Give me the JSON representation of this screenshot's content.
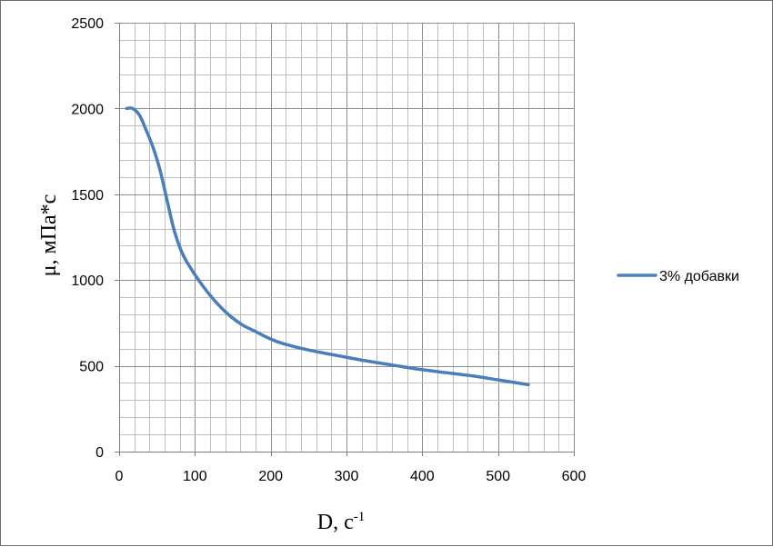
{
  "chart_data": {
    "type": "line",
    "title": "",
    "xlabel": "D, с",
    "xlabel_superscript": "-1",
    "ylabel": "μ, мПа*с",
    "xlim": [
      0,
      600
    ],
    "ylim": [
      0,
      2500
    ],
    "x_ticks": [
      0,
      100,
      200,
      300,
      400,
      500,
      600
    ],
    "y_ticks": [
      0,
      500,
      1000,
      1500,
      2000,
      2500
    ],
    "x_minor_step": 20,
    "y_minor_step": 100,
    "grid": true,
    "legend_position": "right",
    "series": [
      {
        "name": "3% добавки",
        "color": "#4a7ebb",
        "x": [
          10,
          18,
          27,
          36,
          45,
          54,
          63,
          72,
          81,
          90,
          108,
          126,
          144,
          162,
          180,
          198,
          216,
          252,
          288,
          324,
          360,
          396,
          432,
          468,
          504,
          540
        ],
        "y": [
          2000,
          2000,
          1960,
          1870,
          1770,
          1640,
          1470,
          1300,
          1180,
          1100,
          980,
          880,
          800,
          740,
          700,
          660,
          630,
          590,
          560,
          530,
          505,
          480,
          460,
          440,
          415,
          390
        ]
      }
    ]
  }
}
